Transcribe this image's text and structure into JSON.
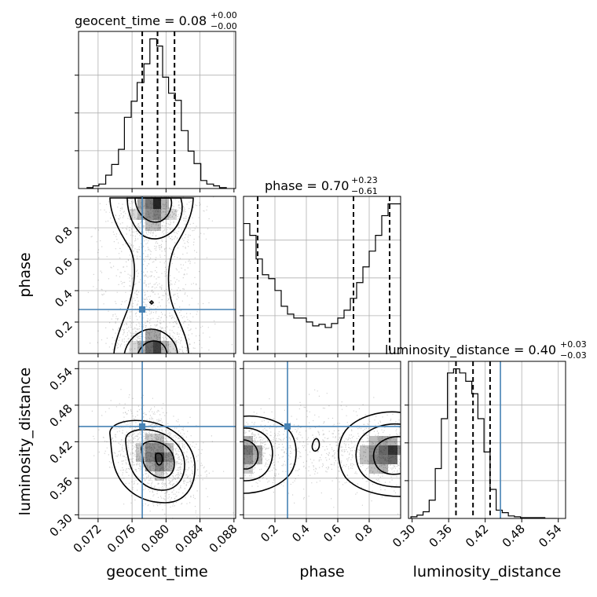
{
  "chart_data": {
    "type": "corner",
    "parameters": [
      "geocent_time",
      "phase",
      "luminosity_distance"
    ],
    "truths": {
      "geocent_time": 0.0772,
      "phase": 0.28,
      "luminosity_distance": 0.445
    },
    "titles": [
      {
        "param": "geocent_time",
        "label": "geocent_time = 0.08",
        "plus": "+0.00",
        "minus": "−0.00"
      },
      {
        "param": "phase",
        "label": "phase = 0.70",
        "plus": "+0.23",
        "minus": "−0.61"
      },
      {
        "param": "luminosity_distance",
        "label": "luminosity_distance = 0.40",
        "plus": "+0.03",
        "minus": "−0.03"
      }
    ],
    "axes": {
      "geocent_time": {
        "range": [
          0.0697,
          0.0882
        ],
        "ticks": [
          0.072,
          0.076,
          0.08,
          0.084,
          0.088
        ],
        "tick_labels": [
          "0.072",
          "0.076",
          "0.080",
          "0.084",
          "0.088"
        ]
      },
      "phase": {
        "range": [
          0.0,
          1.0
        ],
        "ticks": [
          0.2,
          0.4,
          0.6,
          0.8
        ],
        "tick_labels": [
          "0.2",
          "0.4",
          "0.6",
          "0.8"
        ]
      },
      "luminosity_distance": {
        "range": [
          0.294,
          0.552
        ],
        "ticks": [
          0.3,
          0.36,
          0.42,
          0.48,
          0.54
        ],
        "tick_labels": [
          "0.30",
          "0.36",
          "0.42",
          "0.48",
          "0.54"
        ]
      }
    },
    "histograms": {
      "geocent_time": {
        "edges": [
          0.0707,
          0.0714,
          0.0721,
          0.0729,
          0.0736,
          0.0744,
          0.0751,
          0.0759,
          0.0766,
          0.0774,
          0.0781,
          0.0789,
          0.0796,
          0.0803,
          0.0811,
          0.0818,
          0.0826,
          0.0833,
          0.0841,
          0.0848,
          0.0856,
          0.0863,
          0.0871
        ],
        "counts": [
          1,
          3,
          5,
          15,
          27,
          44,
          80,
          98,
          119,
          140,
          168,
          160,
          125,
          107,
          99,
          65,
          42,
          28,
          9,
          5,
          3,
          1
        ],
        "quantiles": [
          0.0772,
          0.079,
          0.081
        ]
      },
      "phase": {
        "edges": [
          0.0,
          0.04,
          0.08,
          0.12,
          0.16,
          0.2,
          0.24,
          0.28,
          0.32,
          0.36,
          0.4,
          0.44,
          0.48,
          0.52,
          0.56,
          0.6,
          0.64,
          0.68,
          0.72,
          0.76,
          0.8,
          0.84,
          0.88,
          0.92,
          0.96,
          1.0
        ],
        "counts": [
          165,
          150,
          120,
          100,
          95,
          80,
          60,
          50,
          45,
          45,
          40,
          35,
          37,
          33,
          38,
          45,
          55,
          70,
          90,
          110,
          130,
          150,
          175,
          190,
          190
        ],
        "quantiles": [
          0.09,
          0.7,
          0.93
        ]
      },
      "luminosity_distance": {
        "edges": [
          0.298,
          0.308,
          0.318,
          0.328,
          0.338,
          0.348,
          0.358,
          0.368,
          0.378,
          0.388,
          0.398,
          0.408,
          0.418,
          0.428,
          0.438,
          0.448,
          0.458,
          0.468,
          0.478,
          0.488,
          0.498,
          0.508,
          0.518,
          0.528,
          0.538
        ],
        "counts": [
          2,
          4,
          8,
          22,
          60,
          120,
          175,
          180,
          175,
          165,
          150,
          120,
          80,
          35,
          10,
          7,
          3,
          2,
          1,
          1,
          1,
          1,
          0,
          0
        ],
        "quantiles": [
          0.372,
          0.4,
          0.428
        ]
      }
    },
    "posterior_modes": [
      {
        "x": "geocent_time",
        "y": "phase",
        "peaks": [
          {
            "x": 0.0795,
            "y": 0.93
          },
          {
            "x": 0.0793,
            "y": 0.03
          }
        ]
      },
      {
        "x": "geocent_time",
        "y": "luminosity_distance",
        "peaks": [
          {
            "x": 0.08,
            "y": 0.395
          }
        ]
      },
      {
        "x": "phase",
        "y": "luminosity_distance",
        "peaks": [
          {
            "x": 0.03,
            "y": 0.405
          },
          {
            "x": 0.95,
            "y": 0.405
          }
        ]
      }
    ]
  }
}
